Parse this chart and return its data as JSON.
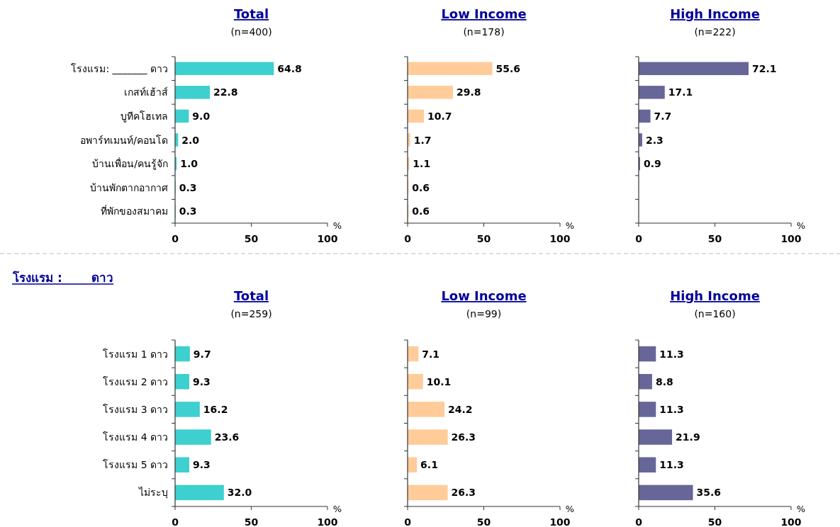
{
  "chart_data": [
    {
      "type": "bar",
      "orientation": "horizontal",
      "title": "Total",
      "subtitle": "(n=400)",
      "xlabel": "%",
      "categories": [
        "โรงแรม: _______ ดาว",
        "เกสท์เฮ้าส์",
        "บูทีคโฮเทล",
        "อพาร์ทเมนท์/คอนโด",
        "บ้านเพื่อน/คนรู้จัก",
        "บ้านพักตากอากาศ",
        "ที่พักของสมาคม"
      ],
      "values": [
        64.8,
        22.8,
        9.0,
        2.0,
        1.0,
        0.3,
        0.3
      ],
      "value_labels": [
        "64.8",
        "22.8",
        "9.0",
        "2.0",
        "1.0",
        "0.3",
        "0.3"
      ],
      "color": "#3ecfcf",
      "xlim": [
        0,
        100
      ],
      "xticks": [
        0,
        50,
        100
      ],
      "grid": false
    },
    {
      "type": "bar",
      "orientation": "horizontal",
      "title": "Low Income",
      "subtitle": "(n=178)",
      "xlabel": "%",
      "categories": [
        null,
        null,
        null,
        null,
        null,
        null,
        null
      ],
      "tick_labels": "x",
      "values": [
        55.6,
        29.8,
        10.7,
        1.7,
        1.1,
        0.6,
        0.6
      ],
      "value_labels": [
        "55.6",
        "29.8",
        "10.7",
        "1.7",
        "1.1",
        "0.6",
        "0.6"
      ],
      "color": "#ffcc99",
      "xlim": [
        0,
        100
      ],
      "xticks": [
        0,
        50,
        100
      ],
      "grid": false
    },
    {
      "type": "bar",
      "orientation": "horizontal",
      "title": "High Income",
      "subtitle": "(n=222)",
      "xlabel": "%",
      "categories": [
        null,
        null,
        null,
        null,
        null,
        null,
        null
      ],
      "tick_labels": "x",
      "values": [
        72.1,
        17.1,
        7.7,
        2.3,
        0.9,
        null,
        null
      ],
      "value_labels": [
        "72.1",
        "17.1",
        "7.7",
        "2.3",
        "0.9",
        null,
        null
      ],
      "color": "#666699",
      "xlim": [
        0,
        100
      ],
      "xticks": [
        0,
        50,
        100
      ],
      "grid": false
    },
    {
      "type": "bar",
      "orientation": "horizontal",
      "title": "Total",
      "subtitle": "(n=259)",
      "xlabel": "%",
      "annotations": [
        "โรงแรม :       ดาว"
      ],
      "categories": [
        "โรงแรม 1 ดาว",
        "โรงแรม 2 ดาว",
        "โรงแรม 3 ดาว",
        "โรงแรม 4 ดาว",
        "โรงแรม 5 ดาว",
        "ไม่ระบุ"
      ],
      "values": [
        9.7,
        9.3,
        16.2,
        23.6,
        9.3,
        32.0
      ],
      "value_labels": [
        "9.7",
        "9.3",
        "16.2",
        "23.6",
        "9.3",
        "32.0"
      ],
      "color": "#3ecfcf",
      "xlim": [
        0,
        100
      ],
      "xticks": [
        0,
        50,
        100
      ],
      "grid": false
    },
    {
      "type": "bar",
      "orientation": "horizontal",
      "title": "Low Income",
      "subtitle": "(n=99)",
      "xlabel": "%",
      "categories": [
        null,
        null,
        null,
        null,
        null,
        null
      ],
      "tick_labels": "x",
      "values": [
        7.1,
        10.1,
        24.2,
        26.3,
        6.1,
        26.3
      ],
      "value_labels": [
        "7.1",
        "10.1",
        "24.2",
        "26.3",
        "6.1",
        "26.3"
      ],
      "color": "#ffcc99",
      "xlim": [
        0,
        100
      ],
      "xticks": [
        0,
        50,
        100
      ],
      "grid": false
    },
    {
      "type": "bar",
      "orientation": "horizontal",
      "title": "High Income",
      "subtitle": "(n=160)",
      "xlabel": "%",
      "categories": [
        null,
        null,
        null,
        null,
        null,
        null
      ],
      "tick_labels": "x",
      "values": [
        11.3,
        8.8,
        11.3,
        21.9,
        11.3,
        35.6
      ],
      "value_labels": [
        "11.3",
        "8.8",
        "11.3",
        "21.9",
        "11.3",
        "35.6"
      ],
      "color": "#666699",
      "xlim": [
        0,
        100
      ],
      "xticks": [
        0,
        50,
        100
      ],
      "grid": false
    }
  ]
}
